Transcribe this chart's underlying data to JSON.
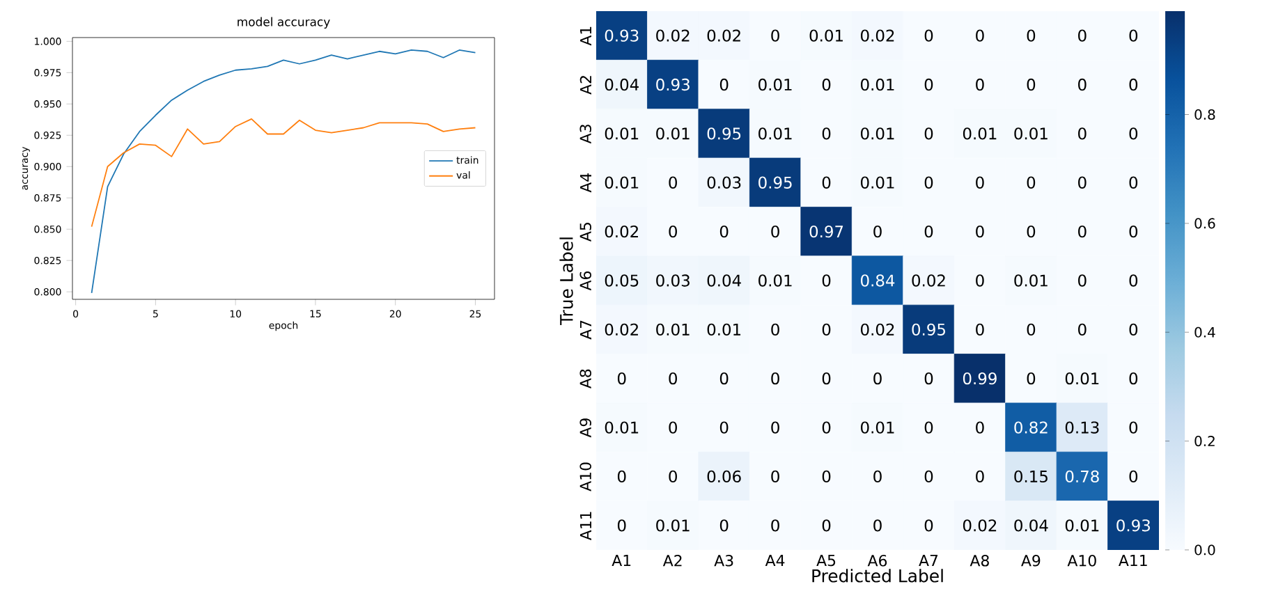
{
  "chart_data": [
    {
      "type": "line",
      "title": "model accuracy",
      "xlabel": "epoch",
      "ylabel": "accuracy",
      "x": [
        1,
        2,
        3,
        4,
        5,
        6,
        7,
        8,
        9,
        10,
        11,
        12,
        13,
        14,
        15,
        16,
        17,
        18,
        19,
        20,
        21,
        22,
        23,
        24,
        25
      ],
      "series": [
        {
          "name": "train",
          "color": "#1f77b4",
          "values": [
            0.799,
            0.884,
            0.91,
            0.928,
            0.941,
            0.953,
            0.961,
            0.968,
            0.973,
            0.977,
            0.978,
            0.98,
            0.985,
            0.982,
            0.985,
            0.989,
            0.986,
            0.989,
            0.992,
            0.99,
            0.993,
            0.992,
            0.987,
            0.993,
            0.991
          ]
        },
        {
          "name": "val",
          "color": "#ff7f0e",
          "values": [
            0.852,
            0.9,
            0.911,
            0.918,
            0.917,
            0.908,
            0.93,
            0.918,
            0.92,
            0.932,
            0.938,
            0.926,
            0.926,
            0.937,
            0.929,
            0.927,
            0.929,
            0.931,
            0.935,
            0.935,
            0.935,
            0.934,
            0.928,
            0.93,
            0.931
          ]
        }
      ],
      "xlim": [
        -0.2,
        26.2
      ],
      "ylim": [
        0.794,
        1.003
      ],
      "xticks": [
        0,
        5,
        10,
        15,
        20,
        25
      ],
      "yticks": [
        {
          "value": 0.8,
          "label": "0.800"
        },
        {
          "value": 0.825,
          "label": "0.825"
        },
        {
          "value": 0.85,
          "label": "0.850"
        },
        {
          "value": 0.875,
          "label": "0.875"
        },
        {
          "value": 0.9,
          "label": "0.900"
        },
        {
          "value": 0.925,
          "label": "0.925"
        },
        {
          "value": 0.95,
          "label": "0.950"
        },
        {
          "value": 0.975,
          "label": "0.975"
        },
        {
          "value": 1.0,
          "label": "1.000"
        }
      ],
      "legend": "right",
      "grid": false
    },
    {
      "type": "heatmap",
      "xlabel": "Predicted Label",
      "ylabel": "True Label",
      "categories": [
        "A1",
        "A2",
        "A3",
        "A4",
        "A5",
        "A6",
        "A7",
        "A8",
        "A9",
        "A10",
        "A11"
      ],
      "y_categories": [
        "A1",
        "A2",
        "A3",
        "A4",
        "A5",
        "A6",
        "A7",
        "A8",
        "A9",
        "A10",
        "A11"
      ],
      "cells": [
        [
          0.93,
          0.02,
          0.02,
          0,
          0.01,
          0.02,
          0,
          0,
          0,
          0,
          0
        ],
        [
          0.04,
          0.93,
          0,
          0.01,
          0,
          0.01,
          0,
          0,
          0,
          0,
          0
        ],
        [
          0.01,
          0.01,
          0.95,
          0.01,
          0,
          0.01,
          0,
          0.01,
          0.01,
          0,
          0
        ],
        [
          0.01,
          0,
          0.03,
          0.95,
          0,
          0.01,
          0,
          0,
          0,
          0,
          0
        ],
        [
          0.02,
          0,
          0,
          0,
          0.97,
          0,
          0,
          0,
          0,
          0,
          0
        ],
        [
          0.05,
          0.03,
          0.04,
          0.01,
          0,
          0.84,
          0.02,
          0,
          0.01,
          0,
          0
        ],
        [
          0.02,
          0.01,
          0.01,
          0,
          0,
          0.02,
          0.95,
          0,
          0,
          0,
          0
        ],
        [
          0,
          0,
          0,
          0,
          0,
          0,
          0,
          0.99,
          0,
          0.01,
          0
        ],
        [
          0.01,
          0,
          0,
          0,
          0,
          0.01,
          0,
          0,
          0.82,
          0.13,
          0
        ],
        [
          0,
          0,
          0.06,
          0,
          0,
          0,
          0,
          0,
          0.15,
          0.78,
          0
        ],
        [
          0,
          0.01,
          0,
          0,
          0,
          0,
          0,
          0.02,
          0.04,
          0.01,
          0.93
        ]
      ],
      "cell_labels": [
        [
          "0.93",
          "0.02",
          "0.02",
          "0",
          "0.01",
          "0.02",
          "0",
          "0",
          "0",
          "0",
          "0"
        ],
        [
          "0.04",
          "0.93",
          "0",
          "0.01",
          "0",
          "0.01",
          "0",
          "0",
          "0",
          "0",
          "0"
        ],
        [
          "0.01",
          "0.01",
          "0.95",
          "0.01",
          "0",
          "0.01",
          "0",
          "0.01",
          "0.01",
          "0",
          "0"
        ],
        [
          "0.01",
          "0",
          "0.03",
          "0.95",
          "0",
          "0.01",
          "0",
          "0",
          "0",
          "0",
          "0"
        ],
        [
          "0.02",
          "0",
          "0",
          "0",
          "0.97",
          "0",
          "0",
          "0",
          "0",
          "0",
          "0"
        ],
        [
          "0.05",
          "0.03",
          "0.04",
          "0.01",
          "0",
          "0.84",
          "0.02",
          "0",
          "0.01",
          "0",
          "0"
        ],
        [
          "0.02",
          "0.01",
          "0.01",
          "0",
          "0",
          "0.02",
          "0.95",
          "0",
          "0",
          "0",
          "0"
        ],
        [
          "0",
          "0",
          "0",
          "0",
          "0",
          "0",
          "0",
          "0.99",
          "0",
          "0.01",
          "0"
        ],
        [
          "0.01",
          "0",
          "0",
          "0",
          "0",
          "0.01",
          "0",
          "0",
          "0.82",
          "0.13",
          "0"
        ],
        [
          "0",
          "0",
          "0.06",
          "0",
          "0",
          "0",
          "0",
          "0",
          "0.15",
          "0.78",
          "0"
        ],
        [
          "0",
          "0.01",
          "0",
          "0",
          "0",
          "0",
          "0",
          "0.02",
          "0.04",
          "0.01",
          "0.93"
        ]
      ],
      "clim": [
        0,
        0.99
      ],
      "cticks": [
        {
          "value": 0,
          "label": "0.0"
        },
        {
          "value": 0.2,
          "label": "0.2"
        },
        {
          "value": 0.4,
          "label": "0.4"
        },
        {
          "value": 0.6,
          "label": "0.6"
        },
        {
          "value": 0.8,
          "label": "0.8"
        }
      ]
    }
  ]
}
